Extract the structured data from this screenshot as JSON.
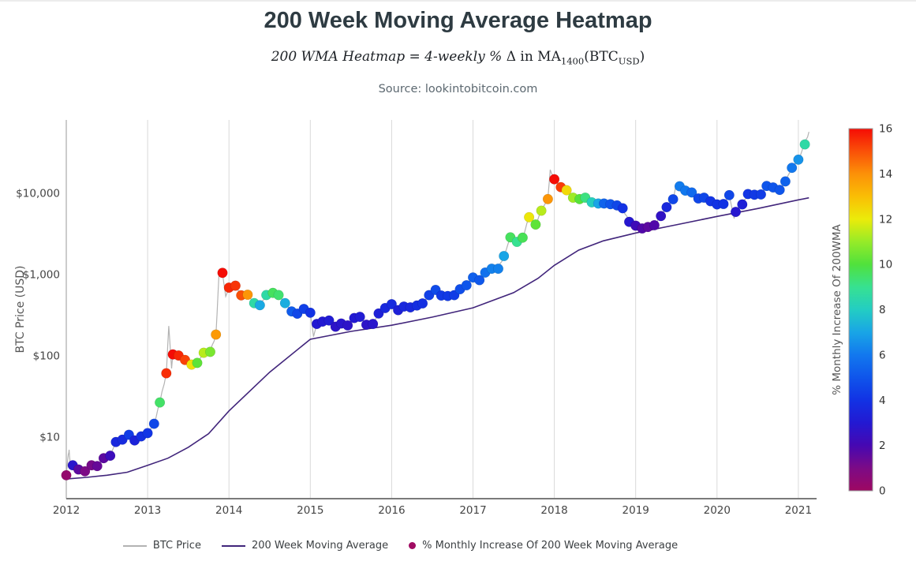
{
  "page": {
    "title": "200 Week Moving Average Heatmap",
    "source": "Source: lookintobitcoin.com"
  },
  "subtitle_segments": [
    {
      "text": "200 WMA Heatmap = 4-weekly % ",
      "style": "italic"
    },
    {
      "text": "Δ in MA",
      "style": "roman"
    },
    {
      "text": "1400",
      "style": "sub"
    },
    {
      "text": "(BTC",
      "style": "roman"
    },
    {
      "text": "USD",
      "style": "sub"
    },
    {
      "text": ")",
      "style": "roman"
    }
  ],
  "legend": {
    "items": [
      {
        "label": "BTC Price",
        "type": "line",
        "color": "#b3b3b3"
      },
      {
        "label": "200 Week Moving Average",
        "type": "line",
        "color": "#41257b"
      },
      {
        "label": "% Monthly Increase Of 200 Week Moving Average",
        "type": "dot",
        "color": "#a00b62"
      }
    ]
  },
  "chart_data": {
    "type": "scatter",
    "title": "200 Week Moving Average Heatmap",
    "xlabel": "",
    "ylabel": "BTC Price (USD)",
    "y_scale": "log",
    "x_ticks": [
      2012,
      2013,
      2014,
      2015,
      2016,
      2017,
      2018,
      2019,
      2020,
      2021
    ],
    "y_ticks": [
      {
        "label": "$10",
        "value": 10
      },
      {
        "label": "$100",
        "value": 100
      },
      {
        "label": "$1,000",
        "value": 1000
      },
      {
        "label": "$10,000",
        "value": 10000
      }
    ],
    "xlim": [
      2012,
      2021.22
    ],
    "ylim": [
      1.75,
      80000
    ],
    "grid": "vertical-only",
    "colors": {
      "btc_line": "#b3b3b3",
      "wma_line": "#41257b",
      "grid": "#d9d9d9",
      "y_axis": "#999999",
      "x_axis": "#7a7a7a",
      "tick_text": "#444444",
      "axis_title_text": "#555555",
      "legend_dot": "#a00b62"
    },
    "colorbar": {
      "label": "% Monthly Increase Of 200WMA",
      "min": 0,
      "max": 16,
      "ticks": [
        0,
        2,
        4,
        6,
        8,
        10,
        12,
        14,
        16
      ],
      "position": "right",
      "stops": [
        [
          0,
          158,
          8,
          98
        ],
        [
          1,
          124,
          10,
          134
        ],
        [
          2,
          70,
          8,
          178
        ],
        [
          3,
          35,
          25,
          210
        ],
        [
          4,
          18,
          50,
          228
        ],
        [
          5,
          15,
          85,
          235
        ],
        [
          6,
          18,
          120,
          238
        ],
        [
          7,
          25,
          165,
          230
        ],
        [
          8,
          35,
          205,
          195
        ],
        [
          9,
          55,
          225,
          145
        ],
        [
          10,
          80,
          225,
          60
        ],
        [
          11,
          150,
          235,
          40
        ],
        [
          12,
          235,
          235,
          10
        ],
        [
          13,
          250,
          190,
          5
        ],
        [
          14,
          252,
          145,
          8
        ],
        [
          15,
          250,
          80,
          8
        ],
        [
          16,
          245,
          12,
          5
        ]
      ]
    },
    "wma_line": [
      [
        2012.0,
        3.05
      ],
      [
        2012.25,
        3.2
      ],
      [
        2012.5,
        3.4
      ],
      [
        2012.75,
        3.7
      ],
      [
        2013.0,
        4.5
      ],
      [
        2013.25,
        5.5
      ],
      [
        2013.5,
        7.5
      ],
      [
        2013.75,
        11
      ],
      [
        2014.0,
        21
      ],
      [
        2014.5,
        63
      ],
      [
        2015.0,
        160
      ],
      [
        2015.5,
        200
      ],
      [
        2016.0,
        238
      ],
      [
        2016.5,
        300
      ],
      [
        2017.0,
        390
      ],
      [
        2017.5,
        600
      ],
      [
        2017.8,
        900
      ],
      [
        2018.0,
        1300
      ],
      [
        2018.3,
        2000
      ],
      [
        2018.6,
        2600
      ],
      [
        2019.0,
        3250
      ],
      [
        2019.5,
        4100
      ],
      [
        2020.0,
        5200
      ],
      [
        2020.5,
        6500
      ],
      [
        2021.0,
        8300
      ],
      [
        2021.13,
        8800
      ]
    ],
    "btc_spikes": [
      [
        2012.02,
        5.6
      ],
      [
        2012.035,
        7.0
      ],
      [
        2012.05,
        4.4
      ],
      [
        2013.26,
        233
      ],
      [
        2013.295,
        70
      ],
      [
        2013.88,
        1130
      ],
      [
        2013.96,
        540
      ],
      [
        2015.04,
        172
      ],
      [
        2017.95,
        19500
      ],
      [
        2019.5,
        13000
      ],
      [
        2020.21,
        4900
      ],
      [
        2021.13,
        57000
      ]
    ],
    "heatmap_points": [
      [
        2012.0,
        3.4,
        0.3
      ],
      [
        2012.08,
        4.5,
        2.8
      ],
      [
        2012.15,
        4.0,
        1.6
      ],
      [
        2012.23,
        3.8,
        1.0
      ],
      [
        2012.31,
        4.5,
        1.1
      ],
      [
        2012.38,
        4.4,
        1.4
      ],
      [
        2012.46,
        5.5,
        1.6
      ],
      [
        2012.54,
        5.9,
        2.3
      ],
      [
        2012.61,
        8.7,
        3.6
      ],
      [
        2012.69,
        9.3,
        3.7
      ],
      [
        2012.77,
        10.7,
        4.3
      ],
      [
        2012.84,
        9.1,
        3.4
      ],
      [
        2012.92,
        10.2,
        3.9
      ],
      [
        2013.0,
        11.2,
        4.1
      ],
      [
        2013.08,
        14.6,
        4.6
      ],
      [
        2013.15,
        26.7,
        9.5
      ],
      [
        2013.23,
        61,
        15.5
      ],
      [
        2013.31,
        104,
        16
      ],
      [
        2013.38,
        101,
        15.6
      ],
      [
        2013.46,
        89,
        15.2
      ],
      [
        2013.54,
        78,
        12.2
      ],
      [
        2013.61,
        82,
        10.2
      ],
      [
        2013.69,
        109,
        11.4
      ],
      [
        2013.77,
        112,
        10.6
      ],
      [
        2013.84,
        183,
        13.8
      ],
      [
        2013.92,
        1050,
        16
      ],
      [
        2014.0,
        690,
        15.6
      ],
      [
        2014.08,
        730,
        15.4
      ],
      [
        2014.15,
        555,
        15.0
      ],
      [
        2014.23,
        565,
        13.9
      ],
      [
        2014.31,
        445,
        8.6
      ],
      [
        2014.38,
        420,
        7.1
      ],
      [
        2014.46,
        560,
        8.6
      ],
      [
        2014.54,
        595,
        9.6
      ],
      [
        2014.61,
        560,
        9.4
      ],
      [
        2014.69,
        445,
        7.2
      ],
      [
        2014.77,
        352,
        5.2
      ],
      [
        2014.84,
        330,
        4.6
      ],
      [
        2014.92,
        378,
        4.4
      ],
      [
        2015.0,
        340,
        4.0
      ],
      [
        2015.08,
        247,
        3.0
      ],
      [
        2015.15,
        264,
        3.0
      ],
      [
        2015.23,
        272,
        3.1
      ],
      [
        2015.31,
        228,
        2.7
      ],
      [
        2015.38,
        250,
        2.8
      ],
      [
        2015.46,
        237,
        2.7
      ],
      [
        2015.54,
        292,
        3.0
      ],
      [
        2015.61,
        302,
        3.1
      ],
      [
        2015.69,
        242,
        2.7
      ],
      [
        2015.77,
        247,
        2.8
      ],
      [
        2015.84,
        332,
        3.3
      ],
      [
        2015.92,
        388,
        3.6
      ],
      [
        2016.0,
        432,
        3.7
      ],
      [
        2016.08,
        365,
        3.3
      ],
      [
        2016.15,
        404,
        3.6
      ],
      [
        2016.23,
        395,
        3.6
      ],
      [
        2016.31,
        416,
        3.8
      ],
      [
        2016.38,
        442,
        3.9
      ],
      [
        2016.46,
        558,
        4.4
      ],
      [
        2016.54,
        648,
        4.7
      ],
      [
        2016.61,
        552,
        4.2
      ],
      [
        2016.69,
        545,
        4.2
      ],
      [
        2016.77,
        558,
        4.3
      ],
      [
        2016.84,
        660,
        4.8
      ],
      [
        2016.92,
        740,
        5.0
      ],
      [
        2017.0,
        920,
        5.3
      ],
      [
        2017.08,
        855,
        5.1
      ],
      [
        2017.15,
        1060,
        5.8
      ],
      [
        2017.23,
        1180,
        6.2
      ],
      [
        2017.31,
        1180,
        6.2
      ],
      [
        2017.38,
        1690,
        7.0
      ],
      [
        2017.46,
        2870,
        9.6
      ],
      [
        2017.54,
        2530,
        9.0
      ],
      [
        2017.61,
        2850,
        9.7
      ],
      [
        2017.69,
        5080,
        12.1
      ],
      [
        2017.77,
        4130,
        10.2
      ],
      [
        2017.84,
        6120,
        11.4
      ],
      [
        2017.92,
        8500,
        13.9
      ],
      [
        2018.0,
        14900,
        16
      ],
      [
        2018.08,
        11900,
        15.3
      ],
      [
        2018.15,
        10900,
        12.4
      ],
      [
        2018.23,
        8850,
        11.1
      ],
      [
        2018.31,
        8500,
        10.1
      ],
      [
        2018.38,
        8850,
        9.2
      ],
      [
        2018.46,
        7750,
        8.1
      ],
      [
        2018.54,
        7500,
        7.0
      ],
      [
        2018.61,
        7500,
        5.4
      ],
      [
        2018.69,
        7350,
        5.0
      ],
      [
        2018.77,
        7100,
        4.6
      ],
      [
        2018.84,
        6550,
        4.0
      ],
      [
        2018.92,
        4450,
        2.9
      ],
      [
        2019.0,
        4000,
        2.2
      ],
      [
        2019.08,
        3700,
        1.8
      ],
      [
        2019.15,
        3850,
        1.6
      ],
      [
        2019.23,
        4050,
        1.8
      ],
      [
        2019.31,
        5250,
        2.6
      ],
      [
        2019.38,
        6750,
        3.6
      ],
      [
        2019.46,
        8450,
        4.6
      ],
      [
        2019.54,
        12200,
        6.1
      ],
      [
        2019.61,
        10800,
        6.0
      ],
      [
        2019.69,
        10250,
        5.6
      ],
      [
        2019.77,
        8650,
        4.6
      ],
      [
        2019.84,
        8850,
        4.6
      ],
      [
        2019.92,
        8000,
        4.1
      ],
      [
        2020.0,
        7300,
        4.0
      ],
      [
        2020.08,
        7400,
        4.0
      ],
      [
        2020.15,
        9500,
        4.6
      ],
      [
        2020.23,
        5900,
        2.9
      ],
      [
        2020.31,
        7300,
        3.3
      ],
      [
        2020.38,
        9800,
        4.1
      ],
      [
        2020.46,
        9600,
        4.2
      ],
      [
        2020.54,
        9700,
        4.3
      ],
      [
        2020.61,
        12300,
        5.0
      ],
      [
        2020.69,
        11800,
        5.0
      ],
      [
        2020.77,
        11000,
        5.0
      ],
      [
        2020.84,
        14000,
        5.4
      ],
      [
        2020.92,
        20600,
        6.0
      ],
      [
        2021.0,
        26000,
        6.6
      ],
      [
        2021.08,
        40000,
        8.6
      ]
    ]
  }
}
